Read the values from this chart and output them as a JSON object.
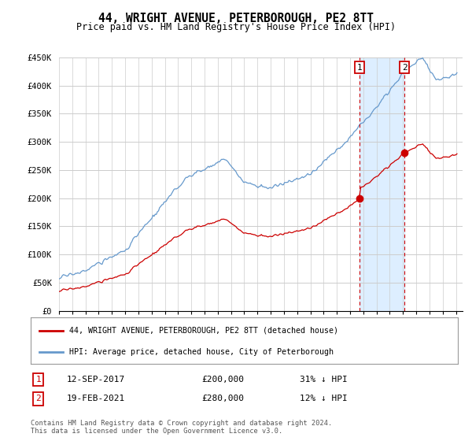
{
  "title": "44, WRIGHT AVENUE, PETERBOROUGH, PE2 8TT",
  "subtitle": "Price paid vs. HM Land Registry's House Price Index (HPI)",
  "ylim": [
    0,
    450000
  ],
  "yticks": [
    0,
    50000,
    100000,
    150000,
    200000,
    250000,
    300000,
    350000,
    400000,
    450000
  ],
  "ytick_labels": [
    "£0",
    "£50K",
    "£100K",
    "£150K",
    "£200K",
    "£250K",
    "£300K",
    "£350K",
    "£400K",
    "£450K"
  ],
  "sale1_date": 2017.708,
  "sale1_price": 200000,
  "sale1_label": "1",
  "sale1_text": "12-SEP-2017",
  "sale1_pct": "31% ↓ HPI",
  "sale2_date": 2021.12,
  "sale2_price": 280000,
  "sale2_label": "2",
  "sale2_text": "19-FEB-2021",
  "sale2_pct": "12% ↓ HPI",
  "hpi_color": "#6699cc",
  "sale_color": "#cc0000",
  "shaded_color": "#ddeeff",
  "legend_entry1": "44, WRIGHT AVENUE, PETERBOROUGH, PE2 8TT (detached house)",
  "legend_entry2": "HPI: Average price, detached house, City of Peterborough",
  "footnote": "Contains HM Land Registry data © Crown copyright and database right 2024.\nThis data is licensed under the Open Government Licence v3.0.",
  "background_color": "#ffffff",
  "grid_color": "#cccccc"
}
